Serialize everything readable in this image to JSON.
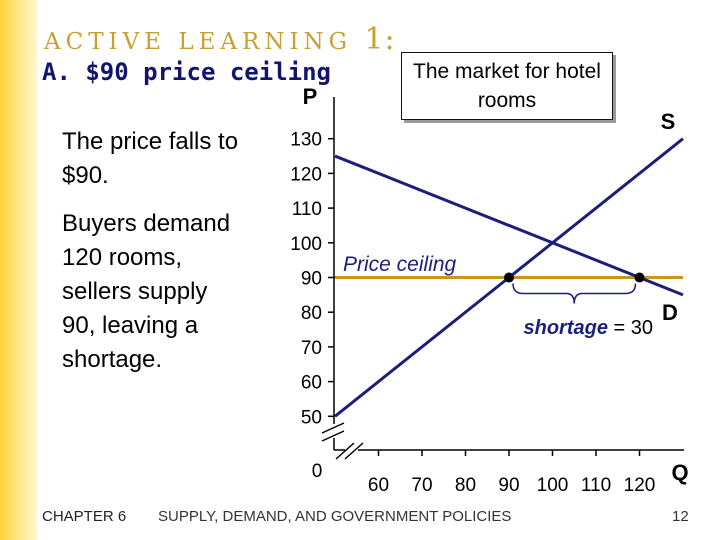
{
  "slide": {
    "eyebrow_text": "ACTIVE LEARNING",
    "eyebrow_number": "1:",
    "title": "A. $90 price ceiling",
    "paragraph1": "The price falls to $90.",
    "paragraph2": "Buyers demand 120 rooms, sellers supply 90, leaving a shortage.",
    "callout": "The market for hotel rooms",
    "footer_chapter": "CHAPTER 6",
    "footer_title": "SUPPLY, DEMAND, AND GOVERNMENT POLICIES",
    "page_number": "12"
  },
  "colors": {
    "curves": "#1c1f7a",
    "ceiling": "#c8961e",
    "eyebrow": "#c8a032",
    "title": "#12146e"
  },
  "chart_data": {
    "type": "line",
    "title": "The market for hotel rooms",
    "xlabel": "Q",
    "ylabel": "P",
    "origin_label": "0",
    "xlim": [
      50,
      130
    ],
    "ylim": [
      40,
      140
    ],
    "x_ticks": [
      60,
      70,
      80,
      90,
      100,
      110,
      120
    ],
    "y_ticks": [
      50,
      60,
      70,
      80,
      90,
      100,
      110,
      120,
      130
    ],
    "axis_breaks": true,
    "grid": false,
    "series": [
      {
        "name": "S",
        "points": [
          [
            50,
            50
          ],
          [
            130,
            130
          ]
        ]
      },
      {
        "name": "D",
        "points": [
          [
            50,
            125
          ],
          [
            130,
            85
          ]
        ]
      }
    ],
    "price_ceiling": {
      "label": "Price ceiling",
      "value": 90
    },
    "marked_points": [
      {
        "x": 90,
        "y": 90
      },
      {
        "x": 120,
        "y": 90
      }
    ],
    "shortage": {
      "label_bold": "shortage",
      "label_rest": " = 30",
      "from": 90,
      "to": 120
    }
  }
}
